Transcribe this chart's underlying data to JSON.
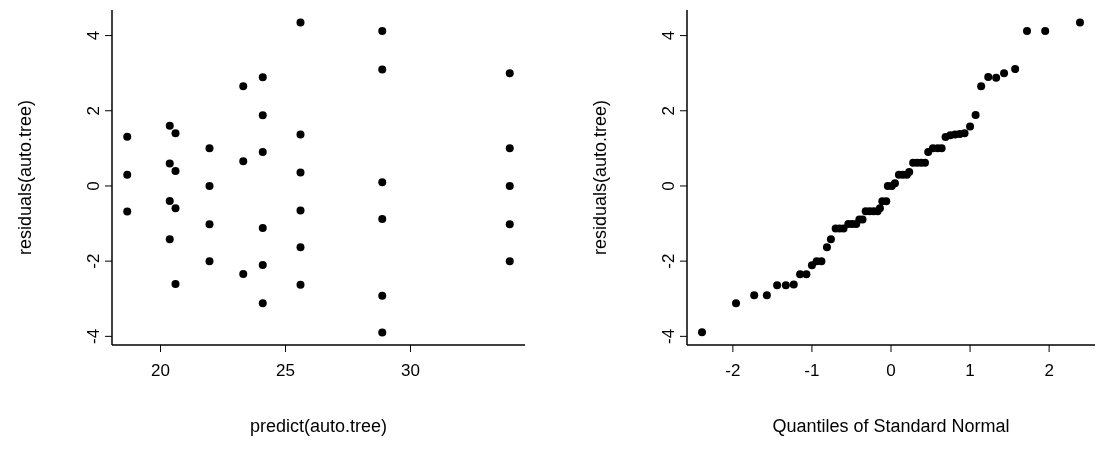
{
  "chart_data": [
    {
      "type": "scatter",
      "xlabel": "predict(auto.tree)",
      "ylabel": "residuals(auto.tree)",
      "marker": "circle",
      "grid": false,
      "xlim": [
        18.06,
        34.58
      ],
      "ylim": [
        -4.23,
        4.68
      ],
      "xticks": [
        20,
        25,
        30
      ],
      "yticks": [
        -4,
        -2,
        0,
        2,
        4
      ],
      "series": [
        {
          "color": "#000000",
          "x": [
            18.67,
            18.67,
            18.67,
            20.37,
            20.37,
            20.37,
            20.37,
            20.6,
            20.6,
            20.6,
            20.6,
            21.96,
            21.96,
            21.96,
            21.96,
            23.31,
            23.31,
            23.31,
            24.09,
            24.09,
            24.09,
            24.09,
            24.09,
            24.09,
            25.6,
            25.6,
            25.6,
            25.6,
            25.6,
            25.6,
            28.87,
            28.87,
            28.87,
            28.87,
            28.87,
            28.87,
            33.97,
            33.97,
            33.97,
            33.97,
            33.97
          ],
          "values": [
            1.31,
            0.3,
            -0.68,
            1.6,
            0.6,
            -0.4,
            -1.42,
            1.4,
            0.4,
            -0.59,
            -2.61,
            1.0,
            0.0,
            -1.02,
            -2.0,
            2.65,
            0.66,
            -2.34,
            2.89,
            1.88,
            0.9,
            -1.12,
            -2.1,
            -3.12,
            4.35,
            1.37,
            0.36,
            -0.65,
            -1.63,
            -2.63,
            4.12,
            3.1,
            0.1,
            -0.88,
            -2.92,
            -3.9,
            3.0,
            1.0,
            0.0,
            -1.02,
            -2.0
          ]
        }
      ]
    },
    {
      "type": "scatter",
      "xlabel": "Quantiles of Standard Normal",
      "ylabel": "residuals(auto.tree)",
      "marker": "circle",
      "grid": false,
      "xlim": [
        -2.58,
        2.58
      ],
      "ylim": [
        -4.23,
        4.68
      ],
      "xticks": [
        -2,
        -1,
        0,
        1,
        2
      ],
      "yticks": [
        -4,
        -2,
        0,
        2,
        4
      ],
      "series": [
        {
          "color": "#000000",
          "x": [
            -2.39,
            -1.96,
            -1.73,
            -1.57,
            -1.44,
            -1.33,
            -1.23,
            -1.15,
            -1.07,
            -1.0,
            -0.94,
            -0.88,
            -0.81,
            -0.76,
            -0.7,
            -0.65,
            -0.6,
            -0.54,
            -0.49,
            -0.44,
            -0.4,
            -0.36,
            -0.32,
            -0.27,
            -0.22,
            -0.17,
            -0.14,
            -0.11,
            -0.06,
            -0.04,
            0.01,
            0.05,
            0.1,
            0.15,
            0.2,
            0.23,
            0.28,
            0.33,
            0.38,
            0.43,
            0.47,
            0.53,
            0.59,
            0.64,
            0.69,
            0.75,
            0.81,
            0.87,
            0.93,
            1.0,
            1.07,
            1.14,
            1.23,
            1.33,
            1.43,
            1.57,
            1.72,
            1.95,
            2.39
          ],
          "values": [
            -3.89,
            -3.12,
            -2.91,
            -2.91,
            -2.64,
            -2.64,
            -2.62,
            -2.35,
            -2.35,
            -2.11,
            -2.0,
            -2.0,
            -1.63,
            -1.42,
            -1.13,
            -1.13,
            -1.13,
            -1.01,
            -1.01,
            -1.01,
            -0.89,
            -0.89,
            -0.67,
            -0.67,
            -0.67,
            -0.67,
            -0.59,
            -0.41,
            -0.41,
            0.0,
            0.0,
            0.07,
            0.3,
            0.3,
            0.3,
            0.37,
            0.62,
            0.62,
            0.62,
            0.62,
            0.9,
            1.0,
            1.0,
            1.0,
            1.3,
            1.35,
            1.37,
            1.38,
            1.4,
            1.58,
            1.89,
            2.65,
            2.9,
            2.88,
            3.0,
            3.11,
            4.12,
            4.12,
            4.35
          ]
        }
      ]
    }
  ]
}
